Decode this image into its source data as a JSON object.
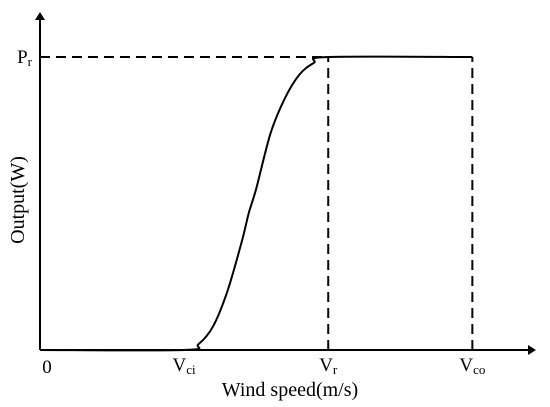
{
  "chart_data": {
    "type": "line",
    "title": "",
    "xlabel": "Wind speed(m/s)",
    "ylabel": "Output(W)",
    "origin_label": "0",
    "x_ticks": [
      {
        "key": "vci",
        "main": "V",
        "sub": "ci",
        "value": 1
      },
      {
        "key": "vr",
        "main": "V",
        "sub": "r",
        "value": 2
      },
      {
        "key": "vco",
        "main": "V",
        "sub": "co",
        "value": 3
      }
    ],
    "y_ticks": [
      {
        "key": "pr",
        "main": "P",
        "sub": "r",
        "value": 1
      }
    ],
    "xlim": [
      0,
      3.4
    ],
    "ylim": [
      0,
      1
    ],
    "grid": false,
    "series": [
      {
        "x": [
          0,
          1,
          1.1,
          1.2,
          1.3,
          1.4,
          1.45,
          1.5,
          1.6,
          1.7,
          1.8,
          1.9,
          2,
          3
        ],
        "y": [
          0,
          0,
          0.02,
          0.08,
          0.2,
          0.37,
          0.47,
          0.55,
          0.74,
          0.86,
          0.94,
          0.98,
          1,
          1
        ]
      }
    ],
    "reference_lines": [
      {
        "type": "horizontal",
        "y": 1,
        "x_from": 0,
        "x_to": 2,
        "style": "dashed"
      },
      {
        "type": "vertical",
        "x": 2,
        "y_from": 0,
        "y_to": 1,
        "style": "dashed"
      },
      {
        "type": "vertical",
        "x": 3,
        "y_from": 0,
        "y_to": 1,
        "style": "dashed"
      }
    ]
  }
}
